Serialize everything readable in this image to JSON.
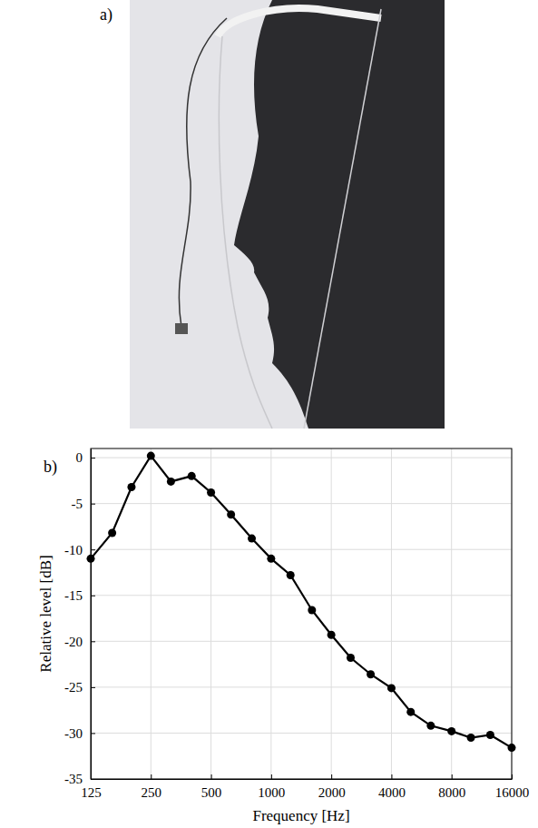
{
  "panel_labels": [
    "a)",
    "b)"
  ],
  "chart_data": {
    "type": "line",
    "x": [
      125,
      160,
      200,
      250,
      315,
      400,
      500,
      630,
      800,
      1000,
      1250,
      1600,
      2000,
      2500,
      3150,
      4000,
      5000,
      6300,
      8000,
      10000,
      12500,
      16000
    ],
    "values": [
      -11,
      -8.2,
      -3.2,
      0.2,
      -2.6,
      -2.0,
      -3.8,
      -6.2,
      -8.8,
      -11,
      -12.8,
      -16.6,
      -19.3,
      -21.8,
      -23.6,
      -25.1,
      -27.7,
      -29.2,
      -29.8,
      -30.5,
      -30.2,
      -31.6
    ],
    "xlabel": "Frequency [Hz]",
    "ylabel": "Relative level [dB]",
    "xlim": [
      125,
      16000
    ],
    "xticks": [
      125,
      250,
      500,
      1000,
      2000,
      4000,
      8000,
      16000
    ],
    "ylim": [
      -35,
      1
    ],
    "yticks": [
      -35,
      -30,
      -25,
      -20,
      -15,
      -10,
      -5,
      0
    ],
    "log": "x",
    "grid": true,
    "color": "#000000",
    "marker": "circle",
    "line_style": "solid"
  }
}
